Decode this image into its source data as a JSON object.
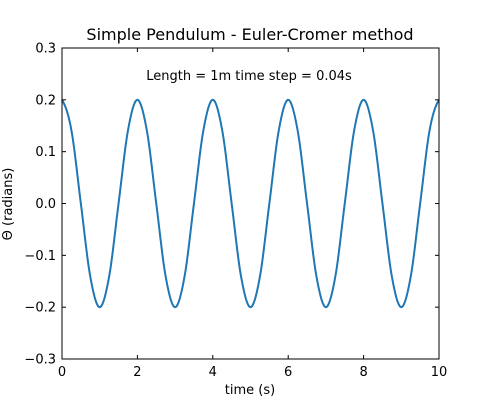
{
  "chart_data": {
    "type": "line",
    "title": "Simple Pendulum - Euler-Cromer method",
    "annotation": "Length = 1m    time step = 0.04s",
    "xlabel": "time (s)",
    "ylabel": "Θ (radians)",
    "xlim": [
      0,
      10
    ],
    "ylim": [
      -0.3,
      0.3
    ],
    "xticks": [
      0,
      2,
      4,
      6,
      8,
      10
    ],
    "xtick_labels": [
      "0",
      "2",
      "4",
      "6",
      "8",
      "10"
    ],
    "yticks": [
      -0.3,
      -0.2,
      -0.1,
      0.0,
      0.1,
      0.2,
      0.3
    ],
    "ytick_labels": [
      "−0.3",
      "−0.2",
      "−0.1",
      "0.0",
      "0.1",
      "0.2",
      "0.3"
    ],
    "grid": false,
    "legend": "none",
    "line_color": "#1f77b4",
    "series": [
      {
        "x": [
          0,
          0.25,
          0.5,
          0.75,
          1.0,
          1.25,
          1.5,
          1.75,
          2.0,
          2.25,
          2.5,
          2.75,
          3.0,
          3.25,
          3.5,
          3.75,
          4.0,
          4.25,
          4.5,
          4.75,
          5.0,
          5.25,
          5.5,
          5.75,
          6.0,
          6.25,
          6.5,
          6.75,
          7.0,
          7.25,
          7.5,
          7.75,
          8.0,
          8.25,
          8.5,
          8.75,
          9.0,
          9.25,
          9.5,
          9.75,
          10.0
        ],
        "y": [
          0.2,
          0.141,
          0.0,
          -0.141,
          -0.2,
          -0.141,
          0.0,
          0.141,
          0.2,
          0.141,
          0.0,
          -0.141,
          -0.2,
          -0.141,
          0.0,
          0.141,
          0.2,
          0.141,
          0.0,
          -0.141,
          -0.2,
          -0.141,
          0.0,
          0.141,
          0.2,
          0.141,
          0.0,
          -0.141,
          -0.2,
          -0.141,
          0.0,
          0.141,
          0.2,
          0.141,
          0.0,
          -0.141,
          -0.2,
          -0.141,
          0.0,
          0.141,
          0.2
        ]
      }
    ]
  }
}
